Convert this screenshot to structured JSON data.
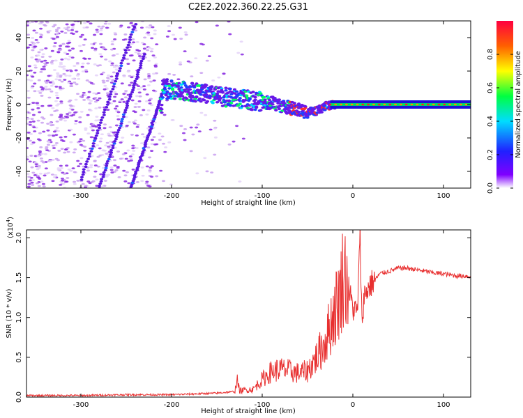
{
  "title": "C2E2.2022.360.22.25.G31",
  "chart_data": [
    {
      "type": "heatmap",
      "xlabel": "Height of straight line (km)",
      "ylabel": "Frequency (Hz)",
      "xlim": [
        -360,
        130
      ],
      "ylim": [
        -50,
        50
      ],
      "xticks": [
        -300,
        -200,
        -100,
        0,
        100
      ],
      "yticks": [
        -40,
        -20,
        0,
        20,
        40
      ],
      "colorbar": {
        "label": "Normalized spectral amplitude",
        "range": [
          0,
          1
        ],
        "ticks": [
          "0.0",
          "0.2",
          "0.4",
          "0.6",
          "0.8"
        ]
      },
      "features": {
        "noise_region_x": [
          -360,
          -120
        ],
        "diagonal_streaks": [
          {
            "x": [
              -300,
              -240
            ],
            "y": [
              -45,
              48
            ]
          },
          {
            "x": [
              -245,
              -205
            ],
            "y": [
              -50,
              15
            ]
          },
          {
            "x": [
              -280,
              -230
            ],
            "y": [
              -50,
              30
            ]
          }
        ],
        "signal_track": [
          {
            "x": -210,
            "y": 9
          },
          {
            "x": -180,
            "y": 8
          },
          {
            "x": -150,
            "y": 5
          },
          {
            "x": -120,
            "y": 3
          },
          {
            "x": -90,
            "y": 1
          },
          {
            "x": -70,
            "y": -2
          },
          {
            "x": -55,
            "y": -4
          },
          {
            "x": -40,
            "y": -4
          },
          {
            "x": -30,
            "y": -1
          },
          {
            "x": -20,
            "y": 0
          },
          {
            "x": 0,
            "y": 0
          },
          {
            "x": 130,
            "y": 0
          }
        ]
      }
    },
    {
      "type": "line",
      "xlabel": "Height of straight line (km)",
      "ylabel": "SNR (10 * v/v)",
      "yscale_label": "(x10^4)",
      "xlim": [
        -360,
        130
      ],
      "ylim": [
        0,
        2.1
      ],
      "xticks": [
        -300,
        -200,
        -100,
        0,
        100
      ],
      "yticks": [
        "0.0",
        "0.5",
        "1.0",
        "1.5",
        "2.0"
      ],
      "color": "#e83030",
      "series": [
        {
          "x": [
            -360,
            -300,
            -250,
            -200,
            -150,
            -130,
            -128,
            -125,
            -110,
            -100,
            -90,
            -80,
            -70,
            -60,
            -50,
            -40,
            -35,
            -30,
            -25,
            -20,
            -15,
            -12,
            -10,
            -5,
            0,
            5,
            8,
            10,
            12,
            15,
            20,
            30,
            40,
            50,
            60,
            70,
            80,
            90,
            100,
            110,
            120,
            130
          ],
          "y": [
            0.02,
            0.02,
            0.03,
            0.03,
            0.05,
            0.07,
            0.22,
            0.08,
            0.1,
            0.22,
            0.32,
            0.35,
            0.33,
            0.3,
            0.33,
            0.5,
            0.6,
            0.72,
            0.9,
            1.1,
            1.25,
            1.45,
            1.6,
            1.38,
            1.12,
            1.05,
            2.05,
            0.9,
            1.25,
            1.33,
            1.42,
            1.55,
            1.58,
            1.62,
            1.62,
            1.6,
            1.58,
            1.56,
            1.55,
            1.53,
            1.52,
            1.52
          ]
        }
      ]
    }
  ]
}
